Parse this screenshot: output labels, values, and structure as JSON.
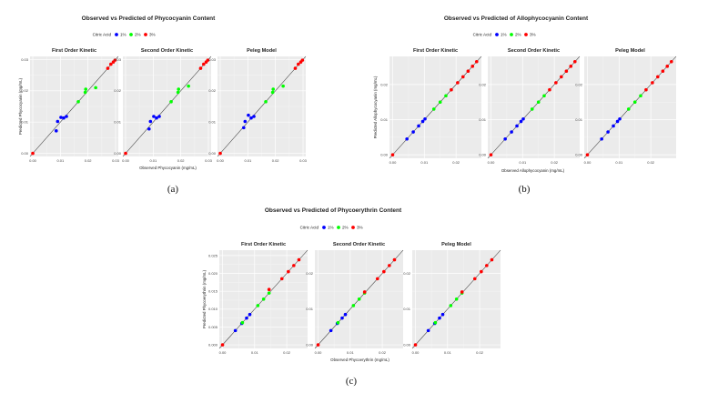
{
  "legend": {
    "title": "Citric Acid",
    "entries": [
      {
        "name": "1%",
        "color": "#0000ff"
      },
      {
        "name": "2%",
        "color": "#00ff00"
      },
      {
        "name": "3%",
        "color": "#ff0000"
      }
    ]
  },
  "panel_bg": "#ebebeb",
  "chart_data": [
    {
      "type": "scatter",
      "caption": "(a)",
      "title": "Observed vs Predicted of Phycocyanin Content",
      "xlabel": "Observed Phycocyanin (mg/mL)",
      "ylabel": "Predicted Phycocyanin (mg/mL)",
      "xlim": [
        -0.001,
        0.031
      ],
      "ylim": [
        -0.001,
        0.031
      ],
      "xticks": [
        0,
        0.01,
        0.02,
        0.03
      ],
      "xtick_labels": [
        "0.00",
        "0.01",
        "0.02",
        "0.03"
      ],
      "yticks": [
        0,
        0.01,
        0.02,
        0.03
      ],
      "ytick_labels": [
        "0.00",
        "0.01",
        "0.02",
        "0.03"
      ],
      "reference_line": "y = x",
      "facets": [
        {
          "title": "First Order Kinetic",
          "points": [
            {
              "g": "3%",
              "x": 0.0,
              "y": 0.0
            },
            {
              "g": "1%",
              "x": 0.0085,
              "y": 0.0072
            },
            {
              "g": "1%",
              "x": 0.009,
              "y": 0.0102
            },
            {
              "g": "1%",
              "x": 0.0102,
              "y": 0.0115
            },
            {
              "g": "1%",
              "x": 0.0112,
              "y": 0.0113
            },
            {
              "g": "1%",
              "x": 0.0122,
              "y": 0.0118
            },
            {
              "g": "2%",
              "x": 0.0165,
              "y": 0.0165
            },
            {
              "g": "2%",
              "x": 0.019,
              "y": 0.0195
            },
            {
              "g": "2%",
              "x": 0.0192,
              "y": 0.0205
            },
            {
              "g": "2%",
              "x": 0.0228,
              "y": 0.021
            },
            {
              "g": "3%",
              "x": 0.0272,
              "y": 0.0272
            },
            {
              "g": "3%",
              "x": 0.0283,
              "y": 0.0285
            },
            {
              "g": "3%",
              "x": 0.0292,
              "y": 0.0292
            },
            {
              "g": "3%",
              "x": 0.0298,
              "y": 0.0298
            }
          ]
        },
        {
          "title": "Second Order Kinetic",
          "points": [
            {
              "g": "3%",
              "x": 0.0,
              "y": 0.0
            },
            {
              "g": "1%",
              "x": 0.0085,
              "y": 0.0078
            },
            {
              "g": "1%",
              "x": 0.009,
              "y": 0.0102
            },
            {
              "g": "1%",
              "x": 0.0102,
              "y": 0.0118
            },
            {
              "g": "1%",
              "x": 0.0112,
              "y": 0.0113
            },
            {
              "g": "1%",
              "x": 0.0122,
              "y": 0.0118
            },
            {
              "g": "2%",
              "x": 0.0165,
              "y": 0.0165
            },
            {
              "g": "2%",
              "x": 0.019,
              "y": 0.0195
            },
            {
              "g": "2%",
              "x": 0.0192,
              "y": 0.0205
            },
            {
              "g": "2%",
              "x": 0.0228,
              "y": 0.0215
            },
            {
              "g": "3%",
              "x": 0.0272,
              "y": 0.0272
            },
            {
              "g": "3%",
              "x": 0.0283,
              "y": 0.0285
            },
            {
              "g": "3%",
              "x": 0.0292,
              "y": 0.0292
            },
            {
              "g": "3%",
              "x": 0.0298,
              "y": 0.0298
            }
          ]
        },
        {
          "title": "Peleg Model",
          "points": [
            {
              "g": "3%",
              "x": 0.0,
              "y": 0.0
            },
            {
              "g": "1%",
              "x": 0.0085,
              "y": 0.0082
            },
            {
              "g": "1%",
              "x": 0.009,
              "y": 0.0102
            },
            {
              "g": "1%",
              "x": 0.0102,
              "y": 0.0122
            },
            {
              "g": "1%",
              "x": 0.0112,
              "y": 0.0113
            },
            {
              "g": "1%",
              "x": 0.0122,
              "y": 0.0118
            },
            {
              "g": "2%",
              "x": 0.0165,
              "y": 0.0165
            },
            {
              "g": "2%",
              "x": 0.019,
              "y": 0.0195
            },
            {
              "g": "2%",
              "x": 0.0192,
              "y": 0.0205
            },
            {
              "g": "2%",
              "x": 0.0228,
              "y": 0.0215
            },
            {
              "g": "3%",
              "x": 0.0272,
              "y": 0.0272
            },
            {
              "g": "3%",
              "x": 0.0283,
              "y": 0.0285
            },
            {
              "g": "3%",
              "x": 0.0292,
              "y": 0.0292
            },
            {
              "g": "3%",
              "x": 0.0298,
              "y": 0.0298
            }
          ]
        }
      ]
    },
    {
      "type": "scatter",
      "caption": "(b)",
      "title": "Observed vs Predicted of Allophycocyanin Content",
      "xlabel": "Observed Allophycocyanin (mg/mL)",
      "ylabel": "Predicted Allophycocyanin (mg/mL)",
      "xlim": [
        -0.001,
        0.028
      ],
      "ylim": [
        -0.001,
        0.028
      ],
      "xticks": [
        0,
        0.01,
        0.02
      ],
      "xtick_labels": [
        "0.00",
        "0.01",
        "0.02"
      ],
      "yticks": [
        0,
        0.01,
        0.02
      ],
      "ytick_labels": [
        "0.00",
        "0.01",
        "0.02"
      ],
      "reference_line": "y = x",
      "facets": [
        {
          "title": "First Order Kinetic",
          "points": [
            {
              "g": "3%",
              "x": 0.0,
              "y": 0.0
            },
            {
              "g": "1%",
              "x": 0.0045,
              "y": 0.0045
            },
            {
              "g": "1%",
              "x": 0.0065,
              "y": 0.0065
            },
            {
              "g": "1%",
              "x": 0.0082,
              "y": 0.0082
            },
            {
              "g": "1%",
              "x": 0.0095,
              "y": 0.0095
            },
            {
              "g": "1%",
              "x": 0.0102,
              "y": 0.0102
            },
            {
              "g": "2%",
              "x": 0.013,
              "y": 0.013
            },
            {
              "g": "2%",
              "x": 0.015,
              "y": 0.015
            },
            {
              "g": "2%",
              "x": 0.0168,
              "y": 0.0168
            },
            {
              "g": "3%",
              "x": 0.0185,
              "y": 0.0185
            },
            {
              "g": "3%",
              "x": 0.0205,
              "y": 0.0205
            },
            {
              "g": "3%",
              "x": 0.0222,
              "y": 0.0222
            },
            {
              "g": "3%",
              "x": 0.0238,
              "y": 0.0238
            },
            {
              "g": "3%",
              "x": 0.0252,
              "y": 0.0252
            },
            {
              "g": "3%",
              "x": 0.0265,
              "y": 0.0265
            }
          ]
        },
        {
          "title": "Second Order Kinetic",
          "points": [
            {
              "g": "3%",
              "x": 0.0,
              "y": 0.0
            },
            {
              "g": "1%",
              "x": 0.0045,
              "y": 0.0045
            },
            {
              "g": "1%",
              "x": 0.0065,
              "y": 0.0065
            },
            {
              "g": "1%",
              "x": 0.0082,
              "y": 0.0082
            },
            {
              "g": "1%",
              "x": 0.0095,
              "y": 0.0095
            },
            {
              "g": "1%",
              "x": 0.0102,
              "y": 0.0102
            },
            {
              "g": "2%",
              "x": 0.013,
              "y": 0.013
            },
            {
              "g": "2%",
              "x": 0.015,
              "y": 0.015
            },
            {
              "g": "2%",
              "x": 0.0168,
              "y": 0.0168
            },
            {
              "g": "3%",
              "x": 0.0185,
              "y": 0.0185
            },
            {
              "g": "3%",
              "x": 0.0205,
              "y": 0.0205
            },
            {
              "g": "3%",
              "x": 0.0222,
              "y": 0.0222
            },
            {
              "g": "3%",
              "x": 0.0238,
              "y": 0.0238
            },
            {
              "g": "3%",
              "x": 0.0252,
              "y": 0.0252
            },
            {
              "g": "3%",
              "x": 0.0265,
              "y": 0.0265
            }
          ]
        },
        {
          "title": "Peleg Model",
          "points": [
            {
              "g": "3%",
              "x": 0.0,
              "y": 0.0
            },
            {
              "g": "1%",
              "x": 0.0045,
              "y": 0.0045
            },
            {
              "g": "1%",
              "x": 0.0065,
              "y": 0.0065
            },
            {
              "g": "1%",
              "x": 0.0082,
              "y": 0.0082
            },
            {
              "g": "1%",
              "x": 0.0095,
              "y": 0.0095
            },
            {
              "g": "1%",
              "x": 0.0102,
              "y": 0.0102
            },
            {
              "g": "2%",
              "x": 0.013,
              "y": 0.013
            },
            {
              "g": "2%",
              "x": 0.015,
              "y": 0.015
            },
            {
              "g": "2%",
              "x": 0.0168,
              "y": 0.0168
            },
            {
              "g": "3%",
              "x": 0.0185,
              "y": 0.0185
            },
            {
              "g": "3%",
              "x": 0.0205,
              "y": 0.0205
            },
            {
              "g": "3%",
              "x": 0.0222,
              "y": 0.0222
            },
            {
              "g": "3%",
              "x": 0.0238,
              "y": 0.0238
            },
            {
              "g": "3%",
              "x": 0.0252,
              "y": 0.0252
            },
            {
              "g": "3%",
              "x": 0.0265,
              "y": 0.0265
            }
          ]
        }
      ]
    },
    {
      "type": "scatter",
      "caption": "(c)",
      "title": "Observed vs Predicted of Phycoerythrin Content",
      "xlabel": "Observed Phycoerythrin (mg/mL)",
      "ylabel": "Predicted Phycoerythrin (mg/mL)",
      "xlim": [
        -0.001,
        0.0265
      ],
      "ylim": [
        -0.001,
        0.0265
      ],
      "xticks": [
        0,
        0.01,
        0.02
      ],
      "xtick_labels": [
        "0.00",
        "0.01",
        "0.02"
      ],
      "yticks": [
        0,
        0.01,
        0.02
      ],
      "ytick_labels": [
        "0.00",
        "0.01",
        "0.02"
      ],
      "first_yticks": [
        0,
        0.005,
        0.01,
        0.015,
        0.02,
        0.025
      ],
      "first_ytick_labels": [
        "0.000",
        "0.005",
        "0.010",
        "0.015",
        "0.020",
        "0.025"
      ],
      "reference_line": "y = x",
      "facets": [
        {
          "title": "First Order Kinetic",
          "points": [
            {
              "g": "3%",
              "x": 0.0,
              "y": 0.0
            },
            {
              "g": "1%",
              "x": 0.004,
              "y": 0.004
            },
            {
              "g": "1%",
              "x": 0.006,
              "y": 0.006
            },
            {
              "g": "1%",
              "x": 0.0075,
              "y": 0.0075
            },
            {
              "g": "1%",
              "x": 0.0085,
              "y": 0.0085
            },
            {
              "g": "2%",
              "x": 0.0062,
              "y": 0.0062
            },
            {
              "g": "2%",
              "x": 0.011,
              "y": 0.011
            },
            {
              "g": "2%",
              "x": 0.0128,
              "y": 0.0128
            },
            {
              "g": "2%",
              "x": 0.0145,
              "y": 0.0145
            },
            {
              "g": "3%",
              "x": 0.0145,
              "y": 0.0155
            },
            {
              "g": "3%",
              "x": 0.0185,
              "y": 0.0185
            },
            {
              "g": "3%",
              "x": 0.0205,
              "y": 0.0205
            },
            {
              "g": "3%",
              "x": 0.0222,
              "y": 0.0222
            },
            {
              "g": "3%",
              "x": 0.0238,
              "y": 0.0238
            }
          ]
        },
        {
          "title": "Second Order Kinetic",
          "points": [
            {
              "g": "3%",
              "x": 0.0,
              "y": 0.0
            },
            {
              "g": "1%",
              "x": 0.004,
              "y": 0.004
            },
            {
              "g": "1%",
              "x": 0.006,
              "y": 0.006
            },
            {
              "g": "1%",
              "x": 0.0075,
              "y": 0.0075
            },
            {
              "g": "1%",
              "x": 0.0085,
              "y": 0.0085
            },
            {
              "g": "2%",
              "x": 0.0062,
              "y": 0.0062
            },
            {
              "g": "2%",
              "x": 0.011,
              "y": 0.011
            },
            {
              "g": "2%",
              "x": 0.0128,
              "y": 0.0128
            },
            {
              "g": "2%",
              "x": 0.0145,
              "y": 0.0145
            },
            {
              "g": "3%",
              "x": 0.0145,
              "y": 0.0148
            },
            {
              "g": "3%",
              "x": 0.0185,
              "y": 0.0185
            },
            {
              "g": "3%",
              "x": 0.0205,
              "y": 0.0205
            },
            {
              "g": "3%",
              "x": 0.0222,
              "y": 0.0222
            },
            {
              "g": "3%",
              "x": 0.0238,
              "y": 0.0238
            }
          ]
        },
        {
          "title": "Peleg Model",
          "points": [
            {
              "g": "3%",
              "x": 0.0,
              "y": 0.0
            },
            {
              "g": "1%",
              "x": 0.004,
              "y": 0.004
            },
            {
              "g": "1%",
              "x": 0.006,
              "y": 0.006
            },
            {
              "g": "1%",
              "x": 0.0075,
              "y": 0.0075
            },
            {
              "g": "1%",
              "x": 0.0085,
              "y": 0.0085
            },
            {
              "g": "2%",
              "x": 0.0062,
              "y": 0.0062
            },
            {
              "g": "2%",
              "x": 0.011,
              "y": 0.011
            },
            {
              "g": "2%",
              "x": 0.0128,
              "y": 0.0128
            },
            {
              "g": "2%",
              "x": 0.0145,
              "y": 0.0145
            },
            {
              "g": "3%",
              "x": 0.0145,
              "y": 0.0148
            },
            {
              "g": "3%",
              "x": 0.0185,
              "y": 0.0185
            },
            {
              "g": "3%",
              "x": 0.0205,
              "y": 0.0205
            },
            {
              "g": "3%",
              "x": 0.0222,
              "y": 0.0222
            },
            {
              "g": "3%",
              "x": 0.0238,
              "y": 0.0238
            }
          ]
        }
      ]
    }
  ]
}
